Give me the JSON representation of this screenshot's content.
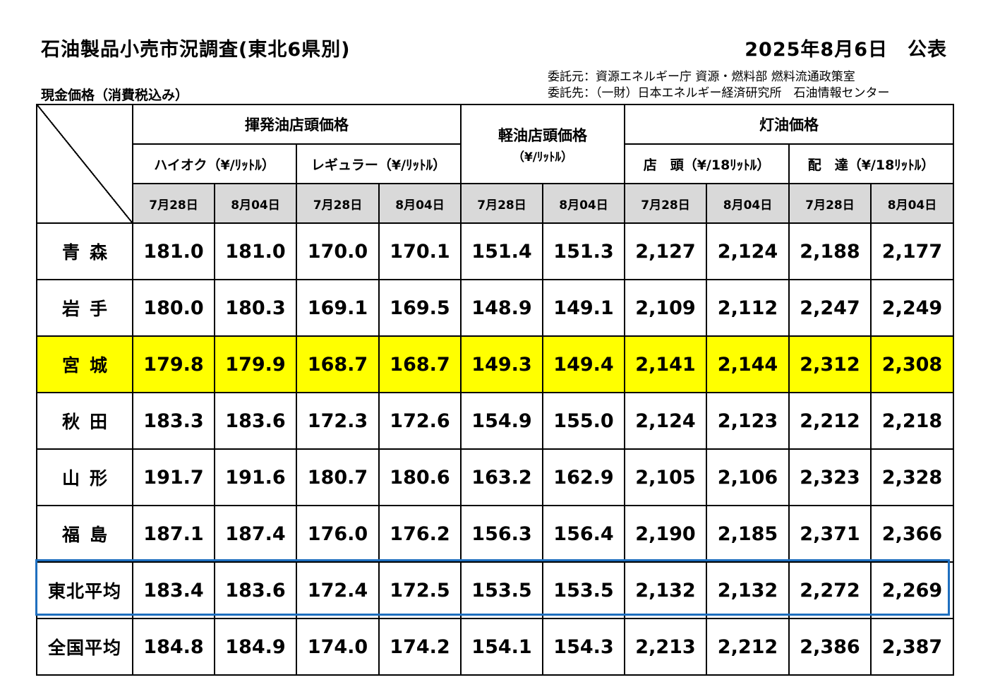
{
  "title": "石油製品小売市況調査(東北6県別)",
  "publish_date": "2025年8月6日　公表",
  "subtitle": "現金価格（消費税込み）",
  "client_lines": [
    "委託元：資源エネルギー庁 資源・燃料部 燃料流通政策室",
    "委託先：（一財）日本エネルギー経済研究所　石油情報センター"
  ],
  "headers": {
    "gasoline": "揮発油店頭価格",
    "diesel": "軽油店頭価格",
    "diesel_unit": "（¥/ﾘｯﾄﾙ）",
    "kerosene": "灯油価格",
    "premium": "ハイオク",
    "premium_unit": "（¥/ﾘｯﾄﾙ）",
    "regular": "レギュラー",
    "regular_unit": "（¥/ﾘｯﾄﾙ）",
    "storefront": "店　頭",
    "storefront_unit": "（¥/18ﾘｯﾄﾙ）",
    "delivery": "配　達",
    "delivery_unit": "（¥/18ﾘｯﾄﾙ）",
    "dates": [
      "7月28日",
      "8月04日",
      "7月28日",
      "8月04日",
      "7月28日",
      "8月04日",
      "7月28日",
      "8月04日",
      "7月28日",
      "8月04日"
    ]
  },
  "rows": [
    {
      "name": "青森",
      "values": [
        "181.0",
        "181.0",
        "170.0",
        "170.1",
        "151.4",
        "151.3",
        "2,127",
        "2,124",
        "2,188",
        "2,177"
      ]
    },
    {
      "name": "岩手",
      "values": [
        "180.0",
        "180.3",
        "169.1",
        "169.5",
        "148.9",
        "149.1",
        "2,109",
        "2,112",
        "2,247",
        "2,249"
      ]
    },
    {
      "name": "宮城",
      "values": [
        "179.8",
        "179.9",
        "168.7",
        "168.7",
        "149.3",
        "149.4",
        "2,141",
        "2,144",
        "2,312",
        "2,308"
      ]
    },
    {
      "name": "秋田",
      "values": [
        "183.3",
        "183.6",
        "172.3",
        "172.6",
        "154.9",
        "155.0",
        "2,124",
        "2,123",
        "2,212",
        "2,218"
      ]
    },
    {
      "name": "山形",
      "values": [
        "191.7",
        "191.6",
        "180.7",
        "180.6",
        "163.2",
        "162.9",
        "2,105",
        "2,106",
        "2,323",
        "2,328"
      ]
    },
    {
      "name": "福島",
      "values": [
        "187.1",
        "187.4",
        "176.0",
        "176.2",
        "156.3",
        "156.4",
        "2,190",
        "2,185",
        "2,371",
        "2,366"
      ]
    },
    {
      "name": "東北平均",
      "values": [
        "183.4",
        "183.6",
        "172.4",
        "172.5",
        "153.5",
        "153.5",
        "2,132",
        "2,132",
        "2,272",
        "2,269"
      ]
    },
    {
      "name": "全国平均",
      "values": [
        "184.8",
        "184.9",
        "174.0",
        "174.2",
        "154.1",
        "154.3",
        "2,213",
        "2,212",
        "2,386",
        "2,387"
      ]
    }
  ],
  "colors": {
    "highlight_row": "#ffff00",
    "date_header_bg": "#d9d9d9",
    "tohoku_average_outline": "#1e6fbf"
  }
}
